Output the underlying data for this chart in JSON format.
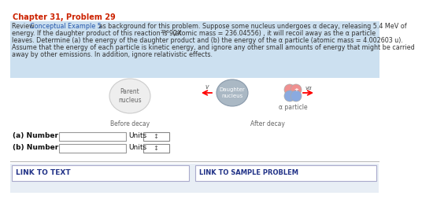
{
  "title": "Chapter 31, Problem 29",
  "title_color": "#cc2200",
  "bg_color": "#ffffff",
  "text_bg_color": "#cce0f0",
  "link_bg_color": "#e8eef5",
  "para_line1a": "Review ",
  "para_line1b": "Conceptual Example 5",
  "para_line1c": " as background for this problem. Suppose some nucleus undergoes α decay, releasing 5.4 MeV of",
  "para_line2a": "energy. If the daughter product of this reaction is 92X",
  "para_line2b": "236",
  "para_line2c": " (atomic mass = 236.04556) , it will recoil away as the α particle",
  "para_line3": "leaves. Determine (a) the energy of the daughter product and (b) the energy of the α particle (atomic mass = 4.002603 u).",
  "para_line4": "Assume that the energy of each particle is kinetic energy, and ignore any other small amounts of energy that might be carried",
  "para_line5": "away by other emissions. In addition, ignore relativistic effects.",
  "before_decay_label": "Before decay",
  "after_decay_label": "After decay",
  "parent_label": "Parent\nnucleus",
  "daughter_label": "Daughter\nnucleus",
  "alpha_label": "α particle",
  "v_left": "v",
  "v_right": "vα",
  "a_label": "(a) Number",
  "b_label": "(b) Number",
  "units_label": "Units",
  "link_text": "LINK TO TEXT",
  "link_sample": "LINK TO SAMPLE PROBLEM",
  "text_color": "#333333",
  "link_color": "#2255aa",
  "bold_color": "#111111"
}
